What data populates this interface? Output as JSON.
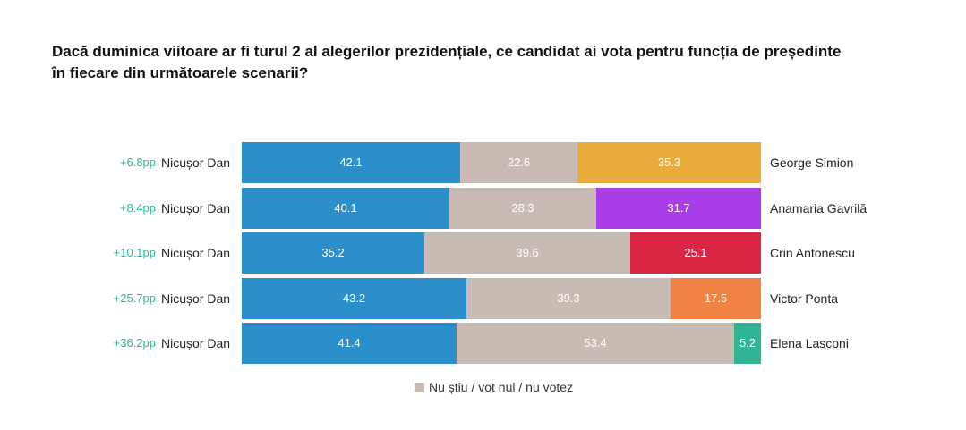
{
  "title": "Dacă duminica viitoare ar fi turul 2 al alegerilor prezidențiale, ce candidat ai vota pentru funcția de președinte în fiecare din următoarele scenarii?",
  "chart_data": {
    "type": "bar",
    "orientation": "horizontal-stacked-100",
    "xlim": [
      0,
      100
    ],
    "categories": [
      "Nicușor Dan vs George Simion",
      "Nicușor Dan vs Anamaria Gavrilă",
      "Nicușor Dan vs Crin Antonescu",
      "Nicușor Dan vs Victor Ponta",
      "Nicușor Dan vs Elena Lasconi"
    ],
    "rows": [
      {
        "diff": "+6.8pp",
        "left": "Nicușor Dan",
        "right": "George Simion",
        "values": [
          42.1,
          22.6,
          35.3
        ],
        "labels": [
          "42.1",
          "22.6",
          "35.3"
        ],
        "right_color": "#e8ab3c"
      },
      {
        "diff": "+8.4pp",
        "left": "Nicușor Dan",
        "right": "Anamaria Gavrilă",
        "values": [
          40.1,
          28.3,
          31.7
        ],
        "labels": [
          "40.1",
          "28.3",
          "31.7"
        ],
        "right_color": "#a93ee8"
      },
      {
        "diff": "+10.1pp",
        "left": "Nicușor Dan",
        "right": "Crin Antonescu",
        "values": [
          35.2,
          39.6,
          25.1
        ],
        "labels": [
          "35.2",
          "39.6",
          "25.1"
        ],
        "right_color": "#d92645"
      },
      {
        "diff": "+25.7pp",
        "left": "Nicușor Dan",
        "right": "Victor Ponta",
        "values": [
          43.2,
          39.3,
          17.5
        ],
        "labels": [
          "43.2",
          "39.3",
          "17.5"
        ],
        "right_color": "#f08244"
      },
      {
        "diff": "+36.2pp",
        "left": "Nicușor Dan",
        "right": "Elena Lasconi",
        "values": [
          41.4,
          53.4,
          5.2
        ],
        "labels": [
          "41.4",
          "53.4",
          "5.2"
        ],
        "right_color": "#2fb494"
      }
    ],
    "colors": {
      "left": "#2b8fcb",
      "middle": "#c7bbb4",
      "diff_text": "#2fb494"
    },
    "legend": {
      "label": "Nu știu / vot nul / nu votez",
      "color": "#c7bbb4",
      "position": "bottom"
    }
  }
}
